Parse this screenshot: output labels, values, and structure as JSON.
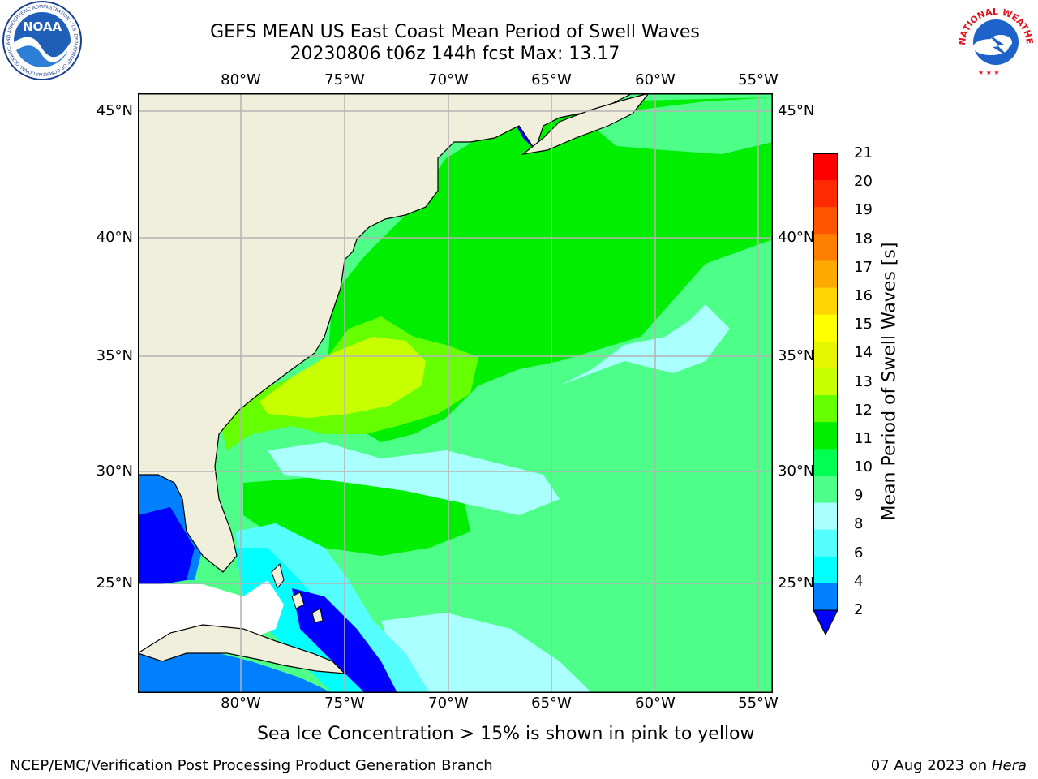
{
  "title": {
    "line1": "GEFS MEAN US East Coast Mean Period of Swell Waves",
    "line2": "20230806 t06z 144h fcst   Max: 13.17"
  },
  "map": {
    "lon_labels": [
      "80°W",
      "75°W",
      "70°W",
      "65°W",
      "60°W",
      "55°W"
    ],
    "lat_labels": [
      "45°N",
      "40°N",
      "35°N",
      "30°N",
      "25°N"
    ]
  },
  "colorbar": {
    "title": "Mean Period of Swell Waves [s]",
    "levels": [
      "21",
      "20",
      "19",
      "18",
      "17",
      "16",
      "15",
      "14",
      "13",
      "12",
      "11",
      "10",
      "9",
      "8",
      "6",
      "4",
      "2"
    ],
    "colors": [
      "#ff0000",
      "#ff2b00",
      "#ff5500",
      "#ff8000",
      "#ffaa00",
      "#ffd500",
      "#ffff00",
      "#e6f500",
      "#c8ff00",
      "#66ff00",
      "#00ee00",
      "#00ff50",
      "#4dff88",
      "#aaffff",
      "#55ffff",
      "#00ffff",
      "#0080ff",
      "#0000ff"
    ]
  },
  "legend_note": "Sea Ice Concentration > 15% is shown in pink to yellow",
  "footer": {
    "left": "NCEP/EMC/Verification Post Processing Product Generation Branch",
    "date": "07 Aug 2023 on",
    "host": "Hera"
  },
  "logos": {
    "noaa_text": "NOAA",
    "noaa_ring": "NATIONAL OCEANIC AND ATMOSPHERIC ADMINISTRATION · U.S. DEPARTMENT OF COMMERCE",
    "nws_ring": "NATIONAL WEATHER SERVICE"
  }
}
